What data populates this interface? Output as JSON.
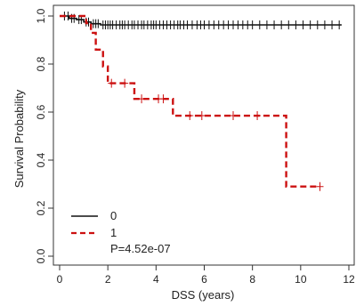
{
  "chart_data": {
    "type": "line",
    "subtype": "kaplan-meier",
    "xlabel": "DSS (years)",
    "ylabel": "Survival Probability",
    "xlim": [
      0,
      12
    ],
    "ylim": [
      0,
      1
    ],
    "x_ticks": [
      0,
      2,
      4,
      6,
      8,
      10,
      12
    ],
    "y_ticks": [
      0.0,
      0.2,
      0.4,
      0.6,
      0.8,
      1.0
    ],
    "x_tick_labels": [
      "0",
      "2",
      "4",
      "6",
      "8",
      "10",
      "12"
    ],
    "y_tick_labels": [
      "0.0",
      "0.2",
      "0.4",
      "0.6",
      "0.8",
      "1.0"
    ],
    "grid": false,
    "legend_position": "bottom-left",
    "legend_labels": [
      "0",
      "1"
    ],
    "annotation": "P=4.52e-07",
    "series": [
      {
        "name": "0",
        "color": "#111111",
        "line_style": "solid",
        "steps": [
          [
            0,
            1.0
          ],
          [
            0.4,
            0.99
          ],
          [
            0.7,
            0.985
          ],
          [
            1.0,
            0.975
          ],
          [
            1.3,
            0.968
          ],
          [
            1.7,
            0.963
          ],
          [
            11.7,
            0.963
          ]
        ],
        "censors": [
          0.2,
          0.35,
          0.5,
          0.6,
          0.8,
          0.9,
          1.1,
          1.2,
          1.4,
          1.5,
          1.6,
          1.8,
          1.9,
          2.0,
          2.1,
          2.2,
          2.35,
          2.5,
          2.6,
          2.7,
          2.85,
          3.0,
          3.1,
          3.25,
          3.4,
          3.5,
          3.65,
          3.8,
          3.9,
          4.0,
          4.15,
          4.3,
          4.45,
          4.6,
          4.75,
          4.9,
          5.0,
          5.15,
          5.3,
          5.5,
          5.7,
          5.85,
          6.0,
          6.2,
          6.4,
          6.6,
          6.8,
          7.0,
          7.2,
          7.4,
          7.6,
          7.8,
          8.0,
          8.3,
          8.6,
          8.9,
          9.2,
          9.5,
          9.8,
          10.1,
          10.4,
          10.7,
          11.0,
          11.3,
          11.6
        ]
      },
      {
        "name": "1",
        "color": "#cc1111",
        "line_style": "dashed",
        "steps": [
          [
            0,
            1.0
          ],
          [
            1.1,
            0.97
          ],
          [
            1.3,
            0.93
          ],
          [
            1.5,
            0.86
          ],
          [
            1.8,
            0.79
          ],
          [
            2.0,
            0.72
          ],
          [
            3.1,
            0.655
          ],
          [
            4.7,
            0.585
          ],
          [
            9.4,
            0.29
          ],
          [
            10.8,
            0.29
          ]
        ],
        "censors": [
          2.15,
          2.7,
          3.4,
          4.1,
          4.3,
          5.4,
          5.9,
          7.2,
          8.2,
          10.8
        ]
      }
    ]
  }
}
